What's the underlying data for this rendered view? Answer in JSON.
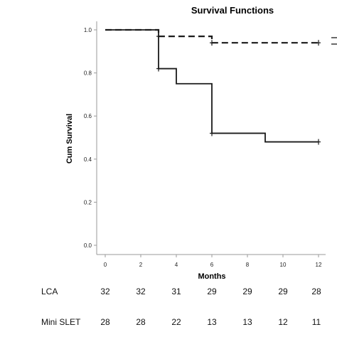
{
  "chart_data": {
    "type": "line",
    "title": "Survival Functions",
    "xlabel": "Months",
    "ylabel": "Cum Survival",
    "xlim": [
      0,
      12
    ],
    "ylim": [
      0,
      1.0
    ],
    "x_ticks": [
      "0",
      "2",
      "4",
      "6",
      "8",
      "10",
      "12"
    ],
    "y_ticks": [
      "0.0",
      "0.2",
      "0.4",
      "0.6",
      "0.8",
      "1.0"
    ],
    "grid": false,
    "series": [
      {
        "style": "dashed",
        "color": "#1a1a1a",
        "steps": [
          [
            0,
            1.0
          ],
          [
            3,
            0.97
          ],
          [
            6,
            0.94
          ],
          [
            12,
            0.94
          ]
        ],
        "censored": [
          [
            3,
            0.97
          ],
          [
            6,
            0.94
          ],
          [
            12,
            0.94
          ]
        ]
      },
      {
        "style": "solid",
        "color": "#1a1a1a",
        "steps": [
          [
            0,
            1.0
          ],
          [
            3,
            0.82
          ],
          [
            4,
            0.75
          ],
          [
            6,
            0.52
          ],
          [
            9,
            0.48
          ],
          [
            12,
            0.48
          ]
        ],
        "censored": [
          [
            3,
            0.82
          ],
          [
            6,
            0.52
          ],
          [
            12,
            0.48
          ]
        ]
      }
    ]
  },
  "risk_table": {
    "rows": [
      {
        "label": "LCA",
        "values": [
          "32",
          "32",
          "31",
          "29",
          "29",
          "29",
          "28"
        ]
      },
      {
        "label": "Mini SLET",
        "values": [
          "28",
          "28",
          "22",
          "13",
          "13",
          "12",
          "11"
        ]
      }
    ]
  }
}
